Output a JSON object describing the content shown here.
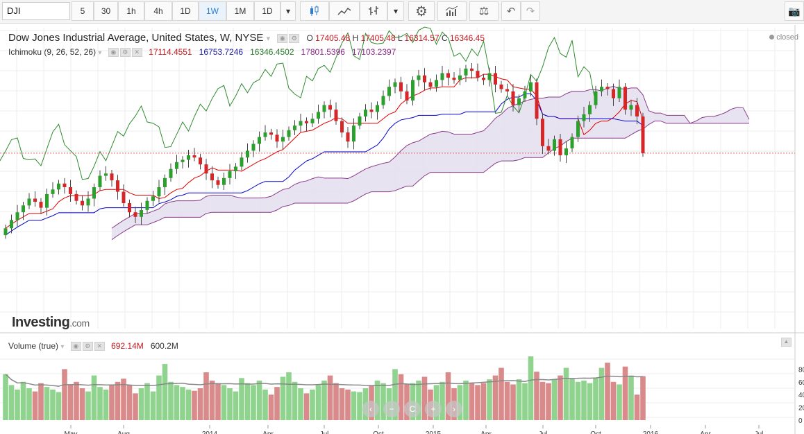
{
  "toolbar": {
    "symbol": "DJI",
    "intervals": [
      "5",
      "30",
      "1h",
      "4h",
      "1D",
      "1W",
      "1M",
      "1D"
    ],
    "active_interval": "1W",
    "icons": [
      "dropdown-icon",
      "candlestick-icon",
      "line-chart-icon",
      "ohlc-bars-icon",
      "dropdown-icon",
      "gear-icon",
      "indicators-icon",
      "compare-scale-icon",
      "undo-icon",
      "redo-icon",
      "camera-icon"
    ]
  },
  "main_legend": {
    "title": "Dow Jones Industrial Average, United States, W, NYSE",
    "o_label": "O",
    "o": "17405.48",
    "h_label": "H",
    "h": "17405.48",
    "l_label": "L",
    "l": "16314.57",
    "c_label": "C",
    "c": "16346.45",
    "status": "closed"
  },
  "ichimoku_legend": {
    "label": "Ichimoku (9, 26, 52, 26)",
    "v1": "17114.4551",
    "v2": "16753.7246",
    "v3": "16346.4502",
    "v4": "17801.5396",
    "v5": "17103.2397"
  },
  "volume_legend": {
    "label": "Volume (true)",
    "v1": "692.14M",
    "v2": "600.2M"
  },
  "logo": {
    "brand": "Investing",
    "suffix": ".com"
  },
  "volume_axis": [
    "80",
    "60",
    "40",
    "20",
    "0"
  ],
  "x_axis_labels": [
    "May",
    "Aug",
    "2014",
    "Apr",
    "Jul",
    "Oct",
    "2015",
    "Apr",
    "Jul",
    "Oct",
    "2016",
    "Apr",
    "Jul"
  ],
  "nav_buttons": [
    "‹",
    "−",
    "C",
    "+",
    "›"
  ],
  "colors": {
    "up": "#2ca02c",
    "down": "#d62728",
    "tenkan": "#e00000",
    "kijun": "#0000cc",
    "chikou": "#2e8b2e",
    "cloud_edge": "#8b3a8b",
    "cloud_fill": "#e4e0f0",
    "vol_up": "#8fd38f",
    "vol_down": "#d98a8a",
    "vol_ma": "#888888",
    "price_line": "#e06060"
  },
  "chart_data": {
    "type": "candlestick",
    "title": "Dow Jones Industrial Average, United States, W, NYSE",
    "y_axis_note": "price axis labels clipped at right edge",
    "closes": [
      14700,
      14880,
      15050,
      15200,
      15350,
      15280,
      15150,
      15450,
      15550,
      15680,
      15600,
      15450,
      15300,
      15200,
      15350,
      15600,
      15850,
      15900,
      15750,
      15500,
      15250,
      15050,
      14950,
      15100,
      15300,
      15400,
      15600,
      15800,
      16000,
      16150,
      16200,
      16300,
      16250,
      16100,
      15900,
      15750,
      15650,
      15800,
      15950,
      16050,
      16250,
      16400,
      16550,
      16700,
      16800,
      16750,
      16600,
      16700,
      16850,
      16950,
      17050,
      17000,
      17100,
      17250,
      17400,
      17300,
      17050,
      16800,
      16600,
      16950,
      17150,
      17300,
      17250,
      17400,
      17600,
      17800,
      17900,
      17700,
      17500,
      17950,
      18050,
      17900,
      17800,
      17950,
      18100,
      18000,
      17950,
      18050,
      18200,
      18150,
      18000,
      17950,
      18100,
      17850,
      17750,
      17700,
      17400,
      17550,
      17700,
      17900,
      17100,
      16500,
      16400,
      16650,
      16300,
      16450,
      16700,
      17050,
      17200,
      17400,
      17700,
      17800,
      17750,
      17550,
      17800,
      17300,
      17400,
      17150,
      16346
    ],
    "volume_approx_millions": [
      72,
      55,
      48,
      60,
      50,
      45,
      58,
      52,
      48,
      44,
      80,
      55,
      60,
      50,
      45,
      70,
      52,
      48,
      56,
      60,
      65,
      55,
      42,
      50,
      58,
      45,
      70,
      88,
      60,
      55,
      52,
      48,
      46,
      50,
      75,
      62,
      58,
      55,
      50,
      45,
      66,
      58,
      55,
      62,
      48,
      40,
      52,
      68,
      75,
      60,
      50,
      42,
      48,
      55,
      62,
      70,
      58,
      50,
      48,
      45,
      44,
      50,
      55,
      62,
      58,
      50,
      80,
      72,
      56,
      58,
      62,
      68,
      48,
      55,
      60,
      75,
      50,
      55,
      62,
      58,
      55,
      58,
      64,
      70,
      82,
      60,
      56,
      64,
      58,
      100,
      76,
      60,
      58,
      64,
      70,
      82,
      66,
      60,
      62,
      58,
      66,
      82,
      90,
      60,
      56,
      84,
      70,
      40,
      69
    ]
  }
}
